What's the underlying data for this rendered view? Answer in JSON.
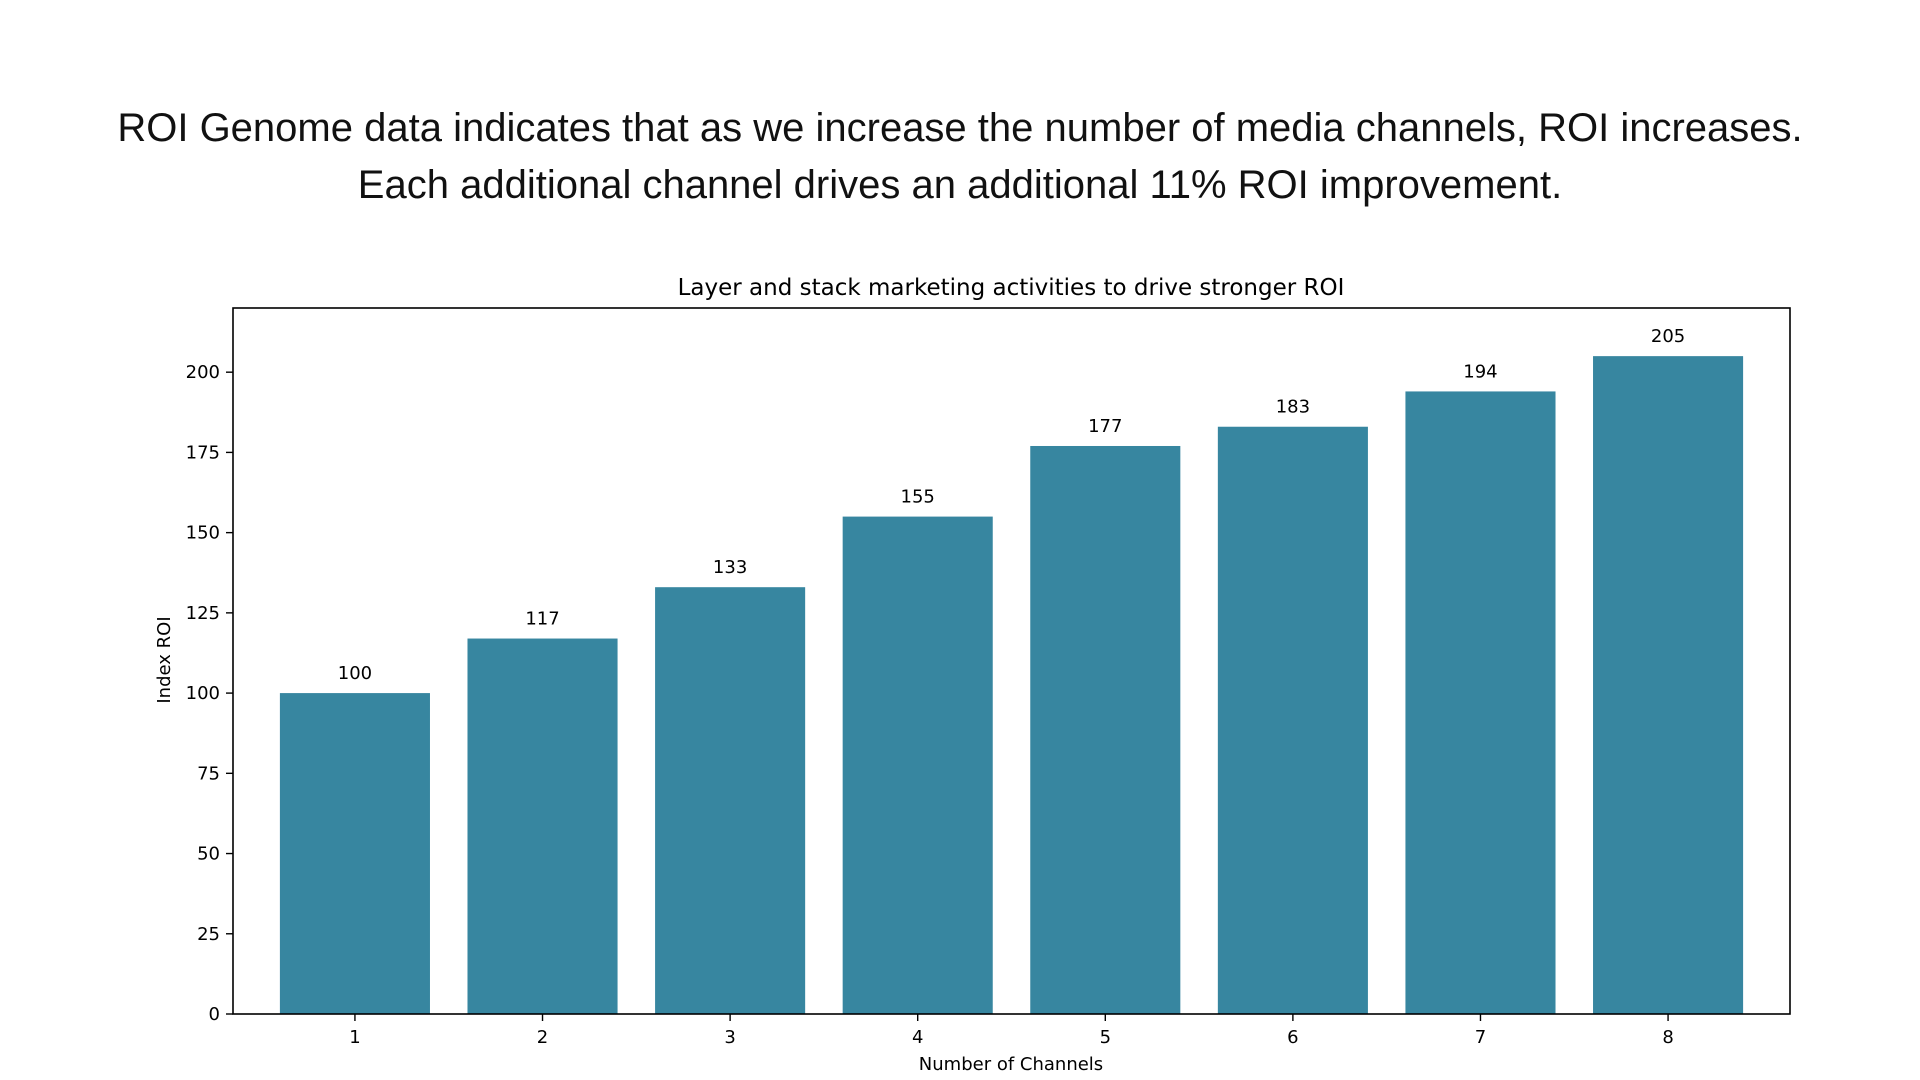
{
  "headline": {
    "line1": "ROI Genome data indicates that as we increase the number of media channels, ROI increases.",
    "line2": "Each additional channel drives an additional 11% ROI improvement."
  },
  "chart_data": {
    "type": "bar",
    "title": "Layer and stack marketing activities to drive stronger ROI",
    "xlabel": "Number of Channels",
    "ylabel": "Index ROI",
    "categories": [
      "1",
      "2",
      "3",
      "4",
      "5",
      "6",
      "7",
      "8"
    ],
    "values": [
      100,
      117,
      133,
      155,
      177,
      183,
      194,
      205
    ],
    "data_labels": [
      "100",
      "117",
      "133",
      "155",
      "177",
      "183",
      "194",
      "205"
    ],
    "ylim": [
      0,
      220
    ],
    "yticks": [
      0,
      25,
      50,
      75,
      100,
      125,
      150,
      175,
      200
    ],
    "bar_color": "#3786a0",
    "grid": false,
    "legend": false
  }
}
